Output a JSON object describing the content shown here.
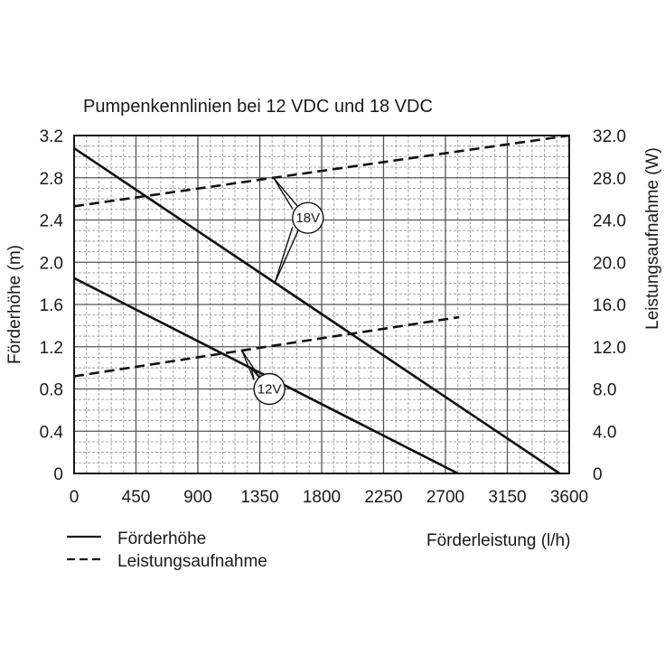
{
  "chart_data": {
    "type": "line",
    "title": "Pumpenkennlinien bei 12 VDC und 18 VDC",
    "xlabel": "Förderleistung (l/h)",
    "ylabel_left": "Förderhöhe (m)",
    "ylabel_right": "Leistungsaufnahme (W)",
    "xlim": [
      0,
      3600
    ],
    "ylim_left": [
      0,
      3.2
    ],
    "ylim_right": [
      0,
      32
    ],
    "x_ticks": [
      "0",
      "450",
      "900",
      "1350",
      "1800",
      "2250",
      "2700",
      "3150",
      "3600"
    ],
    "y_left_ticks": [
      "0",
      "0.4",
      "0.8",
      "1.2",
      "1.6",
      "2.0",
      "2.4",
      "2.8",
      "3.2"
    ],
    "y_right_ticks": [
      "0",
      "4.0",
      "8.0",
      "12.0",
      "16.0",
      "20.0",
      "24.0",
      "28.0",
      "32.0"
    ],
    "grid": true,
    "legend_position": "bottom-left",
    "legend": [
      {
        "label": "Förderhöhe",
        "style": "solid"
      },
      {
        "label": "Leistungsaufnahme",
        "style": "dashed"
      }
    ],
    "annotations": [
      {
        "text": "18V",
        "x": 1700,
        "y": 2.42
      },
      {
        "text": "12V",
        "x": 1420,
        "y": 0.8
      }
    ],
    "series": [
      {
        "voltage": "18V",
        "quantity": "Förderhöhe",
        "axis": "left",
        "style": "solid",
        "x": [
          0,
          3530
        ],
        "y": [
          3.08,
          0
        ]
      },
      {
        "voltage": "12V",
        "quantity": "Förderhöhe",
        "axis": "left",
        "style": "solid",
        "x": [
          0,
          2790
        ],
        "y": [
          1.85,
          0
        ]
      },
      {
        "voltage": "18V",
        "quantity": "Leistungsaufnahme",
        "axis": "right",
        "style": "dashed",
        "x": [
          0,
          3600
        ],
        "y": [
          25.3,
          32.0
        ]
      },
      {
        "voltage": "12V",
        "quantity": "Leistungsaufnahme",
        "axis": "right",
        "style": "dashed",
        "x": [
          0,
          2800
        ],
        "y": [
          9.2,
          14.8
        ]
      }
    ]
  }
}
